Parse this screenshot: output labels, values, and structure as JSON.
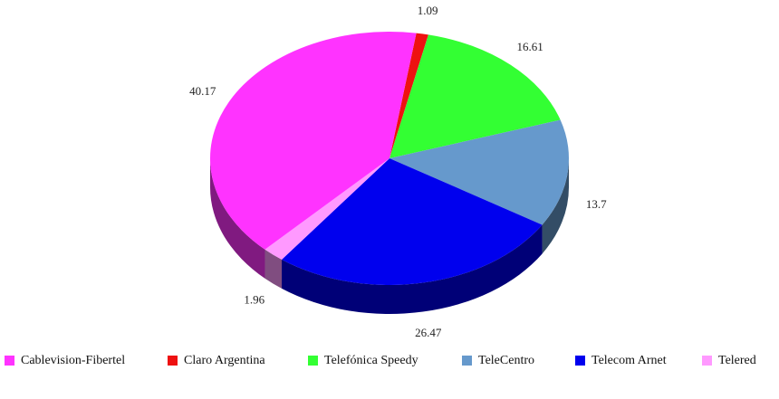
{
  "chart_data": {
    "type": "pie",
    "categories": [
      "Cablevision-Fibertel",
      "Claro Argentina",
      "Telefónica Speedy",
      "TeleCentro",
      "Telecom Arnet",
      "Telered"
    ],
    "values": [
      40.17,
      1.09,
      16.61,
      13.7,
      26.47,
      1.96
    ],
    "colors": [
      "#ff33ff",
      "#ee1111",
      "#33ff33",
      "#6699cc",
      "#0000ee",
      "#ff99ff"
    ],
    "legend": "bottom"
  }
}
